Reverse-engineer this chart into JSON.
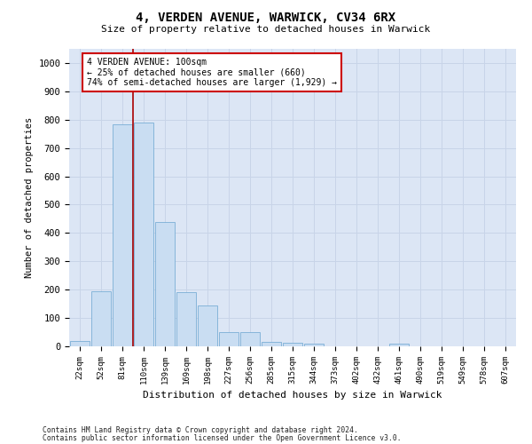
{
  "title": "4, VERDEN AVENUE, WARWICK, CV34 6RX",
  "subtitle": "Size of property relative to detached houses in Warwick",
  "xlabel": "Distribution of detached houses by size in Warwick",
  "ylabel": "Number of detached properties",
  "categories": [
    "22sqm",
    "52sqm",
    "81sqm",
    "110sqm",
    "139sqm",
    "169sqm",
    "198sqm",
    "227sqm",
    "256sqm",
    "285sqm",
    "315sqm",
    "344sqm",
    "373sqm",
    "402sqm",
    "432sqm",
    "461sqm",
    "490sqm",
    "519sqm",
    "549sqm",
    "578sqm",
    "607sqm"
  ],
  "bar_heights": [
    18,
    195,
    785,
    790,
    440,
    190,
    145,
    50,
    50,
    15,
    12,
    10,
    0,
    0,
    0,
    8,
    0,
    0,
    0,
    0,
    0
  ],
  "bar_color": "#c9ddf2",
  "bar_edge_color": "#7aaed6",
  "grid_color": "#c8d4e8",
  "background_color": "#dce6f5",
  "vline_color": "#aa0000",
  "annotation_text": "4 VERDEN AVENUE: 100sqm\n← 25% of detached houses are smaller (660)\n74% of semi-detached houses are larger (1,929) →",
  "annotation_box_color": "#ffffff",
  "annotation_box_edge": "#cc0000",
  "ylim": [
    0,
    1050
  ],
  "yticks": [
    0,
    100,
    200,
    300,
    400,
    500,
    600,
    700,
    800,
    900,
    1000
  ],
  "footnote1": "Contains HM Land Registry data © Crown copyright and database right 2024.",
  "footnote2": "Contains public sector information licensed under the Open Government Licence v3.0."
}
